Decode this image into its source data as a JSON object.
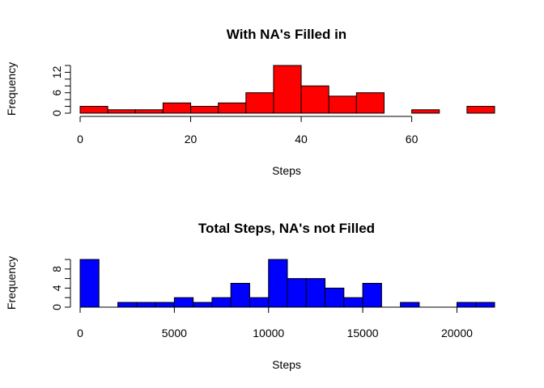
{
  "chart_data": [
    {
      "type": "bar",
      "title": "With NA's Filled in",
      "xlabel": "Steps",
      "ylabel": "Frequency",
      "color": "#ff0000",
      "bin_edges": [
        0,
        5,
        10,
        15,
        20,
        25,
        30,
        35,
        40,
        45,
        50,
        55,
        60,
        65,
        70,
        75
      ],
      "values": [
        2,
        1,
        1,
        3,
        2,
        3,
        6,
        14,
        8,
        5,
        6,
        0,
        1,
        0,
        2
      ],
      "xlim": [
        0,
        75
      ],
      "ylim": [
        0,
        14
      ],
      "x_ticks": [
        0,
        20,
        40,
        60
      ],
      "x_tick_labels": [
        "0",
        "20",
        "40",
        "60"
      ],
      "x_axis_end": 60,
      "y_ticks": [
        0,
        2,
        4,
        6,
        8,
        10,
        12,
        14
      ],
      "y_tick_labels": [
        "0",
        "",
        "",
        "6",
        "",
        "",
        "12",
        ""
      ],
      "grid": false,
      "legend": "none"
    },
    {
      "type": "bar",
      "title": "Total Steps, NA's not Filled",
      "xlabel": "Steps",
      "ylabel": "Frequency",
      "color": "#0000ff",
      "bin_edges": [
        0,
        1000,
        2000,
        3000,
        4000,
        5000,
        6000,
        7000,
        8000,
        9000,
        10000,
        11000,
        12000,
        13000,
        14000,
        15000,
        16000,
        17000,
        18000,
        19000,
        20000,
        21000,
        22000
      ],
      "values": [
        10,
        0,
        1,
        1,
        1,
        2,
        1,
        2,
        5,
        2,
        10,
        6,
        6,
        4,
        2,
        5,
        0,
        1,
        0,
        0,
        1,
        1
      ],
      "xlim": [
        0,
        22000
      ],
      "ylim": [
        0,
        10
      ],
      "x_ticks": [
        0,
        5000,
        10000,
        15000,
        20000
      ],
      "x_tick_labels": [
        "0",
        "5000",
        "10000",
        "15000",
        "20000"
      ],
      "x_axis_end": 22000,
      "y_ticks": [
        0,
        2,
        4,
        6,
        8,
        10
      ],
      "y_tick_labels": [
        "0",
        "",
        "4",
        "",
        "8",
        ""
      ],
      "grid": false,
      "legend": "none"
    }
  ]
}
